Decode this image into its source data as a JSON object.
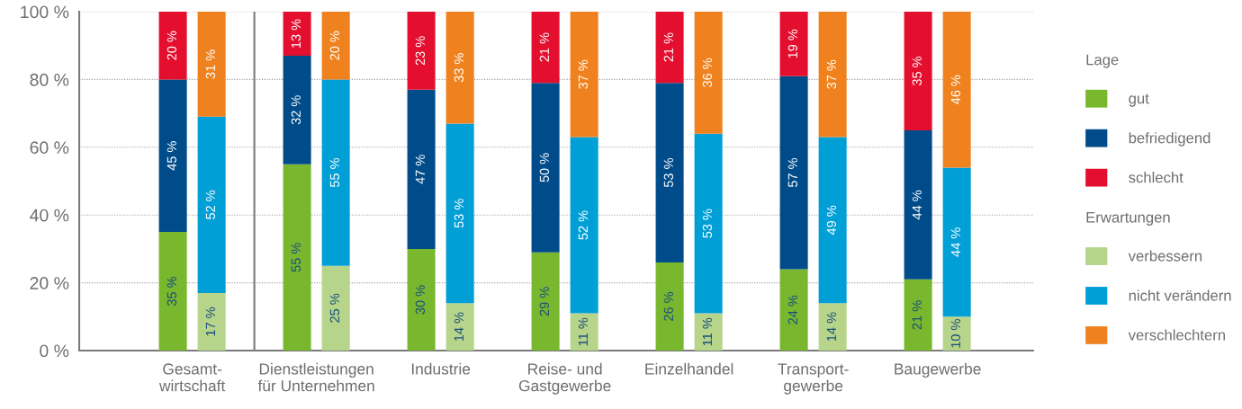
{
  "chart_data": [
    {
      "type": "bar",
      "stacked": true,
      "legend_title": "Lage",
      "categories": [
        "Gesamt-\nwirtschaft",
        "Dienstleistungen\nfür Unternehmen",
        "Industrie",
        "Reise- und\nGastgewerbe",
        "Einzelhandel",
        "Transport-\ngewerbe",
        "Baugewerbe"
      ],
      "series": [
        {
          "name": "gut",
          "color": "#78b72e",
          "values": [
            35,
            55,
            30,
            29,
            26,
            24,
            21
          ],
          "value_labels": [
            "35 %",
            "55 %",
            "30 %",
            "29 %",
            "26 %",
            "24 %",
            "21 %"
          ]
        },
        {
          "name": "befriedigend",
          "color": "#004c8a",
          "values": [
            45,
            32,
            47,
            50,
            53,
            57,
            44
          ],
          "value_labels": [
            "45 %",
            "32 %",
            "47 %",
            "50 %",
            "53 %",
            "57 %",
            "44 %"
          ]
        },
        {
          "name": "schlecht",
          "color": "#e40f2e",
          "values": [
            20,
            13,
            23,
            21,
            21,
            19,
            35
          ],
          "value_labels": [
            "20 %",
            "13 %",
            "23 %",
            "21 %",
            "21 %",
            "19 %",
            "35 %"
          ]
        }
      ],
      "ylim": [
        0,
        100
      ],
      "yticks": [
        {
          "value": 0,
          "label": "0 %"
        },
        {
          "value": 20,
          "label": "20 %"
        },
        {
          "value": 40,
          "label": "40 %"
        },
        {
          "value": 60,
          "label": "60 %"
        },
        {
          "value": 80,
          "label": "80 %"
        },
        {
          "value": 100,
          "label": "100 %"
        }
      ],
      "grid": "y",
      "legend": "right"
    },
    {
      "type": "bar",
      "stacked": true,
      "legend_title": "Erwartungen",
      "categories": [
        null,
        null,
        null,
        null,
        null,
        null,
        null
      ],
      "series": [
        {
          "name": "verbessern",
          "color": "#b6d58a",
          "values": [
            17,
            25,
            14,
            11,
            11,
            14,
            10
          ],
          "value_labels": [
            "17 %",
            "25 %",
            "14 %",
            "11 %",
            "11 %",
            "14 %",
            "10 %"
          ]
        },
        {
          "name": "nicht verändern",
          "color": "#009fd6",
          "values": [
            52,
            55,
            53,
            52,
            53,
            49,
            44
          ],
          "value_labels": [
            "52 %",
            "55 %",
            "53 %",
            "52 %",
            "53 %",
            "49 %",
            "44 %"
          ]
        },
        {
          "name": "verschlechtern",
          "color": "#ef821e",
          "values": [
            31,
            20,
            33,
            37,
            36,
            37,
            46
          ],
          "value_labels": [
            "31 %",
            "20 %",
            "33 %",
            "37 %",
            "36 %",
            "37 %",
            "46 %"
          ]
        }
      ],
      "ylim": [
        0,
        100
      ],
      "tick_labels": false,
      "legend": "right"
    }
  ]
}
